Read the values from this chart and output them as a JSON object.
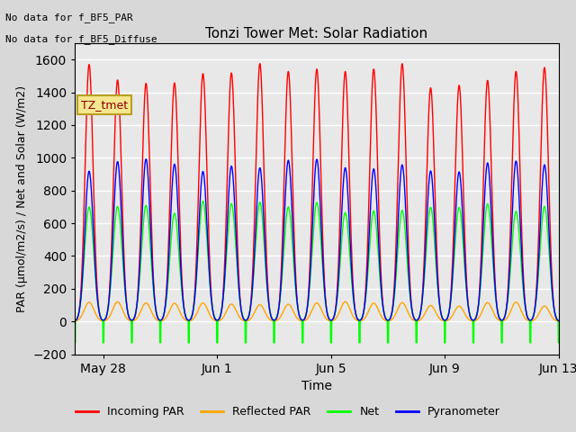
{
  "title": "Tonzi Tower Met: Solar Radiation",
  "xlabel": "Time",
  "ylabel": "PAR (μmol/m2/s) / Net and Solar (W/m2)",
  "ylim": [
    -200,
    1700
  ],
  "yticks": [
    -200,
    0,
    200,
    400,
    600,
    800,
    1000,
    1200,
    1400,
    1600
  ],
  "note1": "No data for f_BF5_PAR",
  "note2": "No data for f_BF5_Diffuse",
  "legend_label": "TZ_tmet",
  "legend_entries": [
    "Incoming PAR",
    "Reflected PAR",
    "Net",
    "Pyranometer"
  ],
  "legend_colors": [
    "red",
    "orange",
    "lime",
    "blue"
  ],
  "bg_color": "#d8d8d8",
  "plot_bg": "#e8e8e8",
  "n_days": 17,
  "xtick_labels": [
    "May 28",
    "Jun 1",
    "Jun 5",
    "Jun 9",
    "Jun 13"
  ],
  "xtick_positions": [
    1,
    5,
    9,
    13,
    17
  ],
  "incoming_par_peak": 1550,
  "reflected_par_peak": 110,
  "net_peak": 730,
  "net_min": -130,
  "pyranometer_peak": 980,
  "pts_per_day": 288
}
